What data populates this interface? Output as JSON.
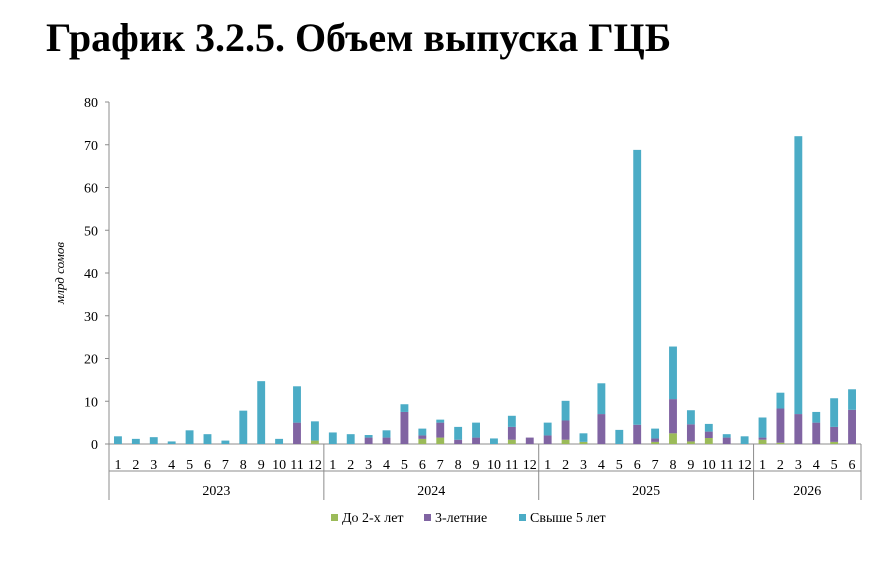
{
  "title": "График 3.2.5. Объем выпуска ГЦБ",
  "chart_data": {
    "type": "bar",
    "stacked": true,
    "ylabel": "млрд сомов",
    "ylim": [
      0,
      80
    ],
    "yticks": [
      0,
      10,
      20,
      30,
      40,
      50,
      60,
      70,
      80
    ],
    "grid": false,
    "legend_position": "bottom",
    "groups": [
      {
        "label": "2023",
        "months": [
          "1",
          "2",
          "3",
          "4",
          "5",
          "6",
          "7",
          "8",
          "9",
          "10",
          "11",
          "12"
        ]
      },
      {
        "label": "2024",
        "months": [
          "1",
          "2",
          "3",
          "4",
          "5",
          "6",
          "7",
          "8",
          "9",
          "10",
          "11",
          "12"
        ]
      },
      {
        "label": "2025",
        "months": [
          "1",
          "2",
          "3",
          "4",
          "5",
          "6",
          "7",
          "8",
          "9",
          "10",
          "11",
          "12"
        ]
      },
      {
        "label": "2026",
        "months": [
          "1",
          "2",
          "3",
          "4",
          "5",
          "6"
        ]
      }
    ],
    "series": [
      {
        "name": "До 2-х лет",
        "color": "#9bbb59",
        "values": [
          0,
          0,
          0,
          0,
          0,
          0,
          0,
          0,
          0,
          0,
          0,
          0.8,
          0,
          0,
          0,
          0,
          0,
          1.2,
          1.5,
          0,
          0,
          0,
          1.0,
          0,
          0,
          1.0,
          0.5,
          0,
          0,
          0,
          0.5,
          2.5,
          0.6,
          1.4,
          0,
          0,
          1.0,
          0.3,
          0,
          0,
          0.5,
          0
        ]
      },
      {
        "name": "3-летние",
        "color": "#8064a2",
        "values": [
          0,
          0,
          0,
          0,
          0,
          0,
          0,
          0,
          0,
          0,
          5.0,
          0,
          0,
          0,
          1.5,
          1.5,
          7.5,
          0.8,
          3.5,
          1.0,
          1.5,
          0,
          3.0,
          1.5,
          2.0,
          4.5,
          0,
          7.0,
          0,
          4.5,
          0.8,
          8.0,
          4.0,
          1.5,
          1.5,
          0,
          0.5,
          8.0,
          7.0,
          5.0,
          3.5,
          8.0
        ]
      },
      {
        "name": "Свыше 5 лет",
        "color": "#4bacc6",
        "values": [
          1.8,
          1.2,
          1.6,
          0.6,
          3.2,
          2.3,
          0.8,
          7.8,
          14.7,
          1.2,
          8.5,
          4.5,
          2.7,
          2.3,
          0.6,
          1.7,
          1.8,
          1.6,
          0.7,
          3.0,
          3.5,
          1.3,
          2.6,
          0,
          3.0,
          4.6,
          2.0,
          7.2,
          3.3,
          64.3,
          2.3,
          12.3,
          3.3,
          1.8,
          0.8,
          1.8,
          4.7,
          3.7,
          65.0,
          2.5,
          6.7,
          4.8
        ]
      }
    ]
  }
}
